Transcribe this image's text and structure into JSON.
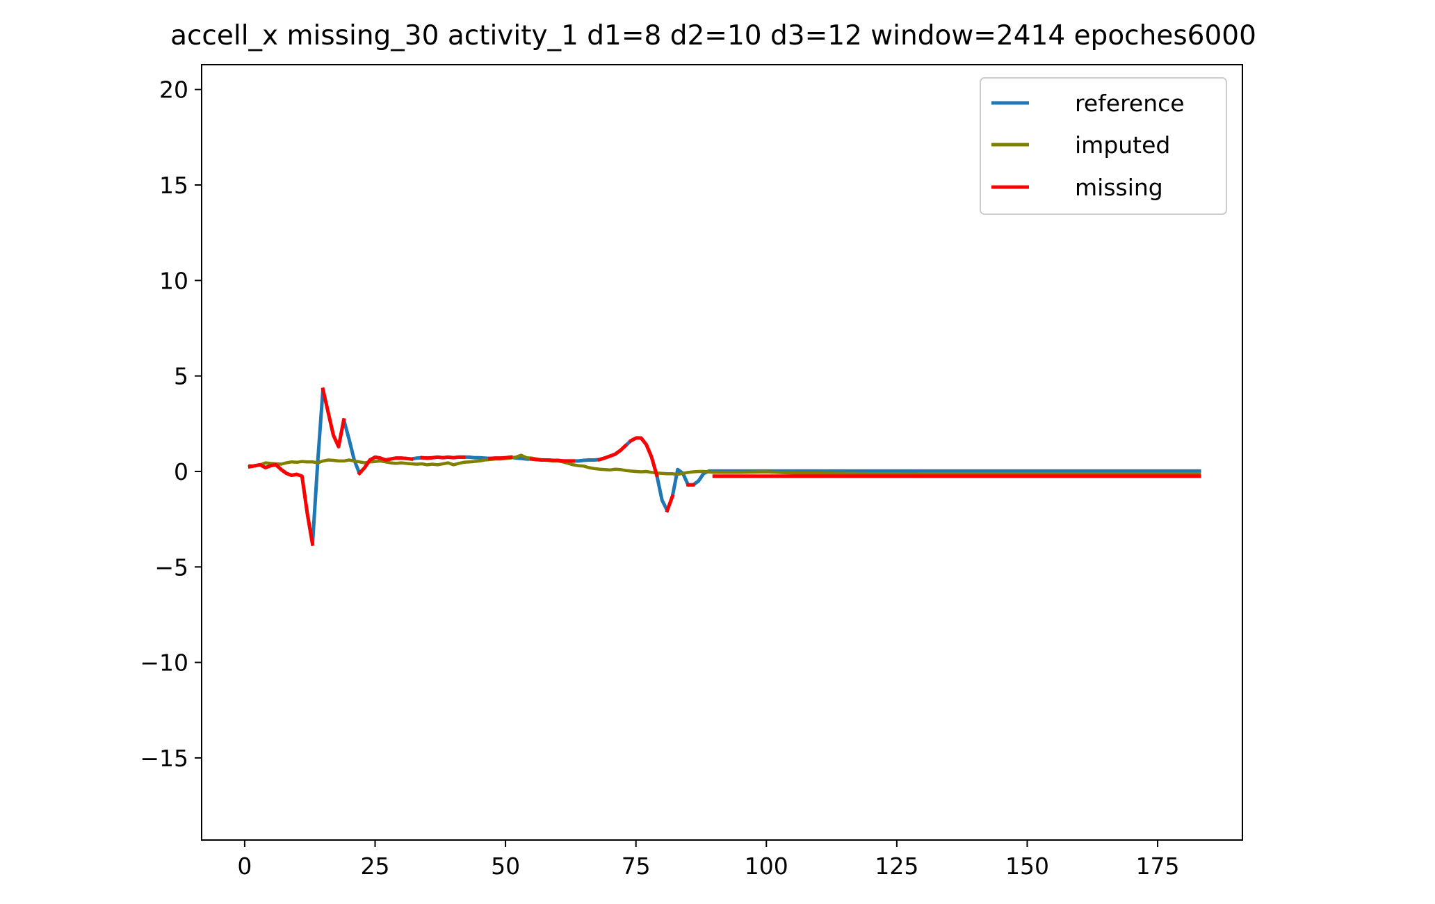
{
  "chart_data": {
    "type": "line",
    "title": "accell_x missing_30 activity_1 d1=8 d2=10 d3=12 window=2414 epoches6000",
    "xlabel": "",
    "ylabel": "",
    "xlim": [
      -8.25,
      191.25
    ],
    "ylim": [
      -19.3,
      21.3
    ],
    "xticks": [
      0,
      25,
      50,
      75,
      100,
      125,
      150,
      175
    ],
    "xtick_labels": [
      "0",
      "25",
      "50",
      "75",
      "100",
      "125",
      "150",
      "175"
    ],
    "yticks": [
      20,
      15,
      10,
      5,
      0,
      -5,
      -10,
      -15
    ],
    "ytick_labels": [
      "20",
      "15",
      "10",
      "5",
      "0",
      "−5",
      "−10",
      "−15"
    ],
    "grid": false,
    "legend_position": "top-right",
    "series": [
      {
        "name": "reference",
        "color": "#1f77b4",
        "points": [
          [
            1,
            0.25
          ],
          [
            2,
            0.3
          ],
          [
            3,
            0.35
          ],
          [
            4,
            0.2
          ],
          [
            5,
            0.3
          ],
          [
            6,
            0.35
          ],
          [
            7,
            0.1
          ],
          [
            8,
            -0.1
          ],
          [
            9,
            -0.2
          ],
          [
            10,
            -0.15
          ],
          [
            11,
            -0.25
          ],
          [
            12,
            -2.2
          ],
          [
            13,
            -3.8
          ],
          [
            14,
            0.5
          ],
          [
            15,
            4.3
          ],
          [
            16,
            3.1
          ],
          [
            17,
            1.9
          ],
          [
            18,
            1.3
          ],
          [
            19,
            2.7
          ],
          [
            20,
            1.7
          ],
          [
            21,
            0.6
          ],
          [
            22,
            -0.1
          ],
          [
            23,
            0.2
          ],
          [
            24,
            0.6
          ],
          [
            25,
            0.75
          ],
          [
            26,
            0.7
          ],
          [
            27,
            0.6
          ],
          [
            28,
            0.65
          ],
          [
            29,
            0.7
          ],
          [
            30,
            0.7
          ],
          [
            31,
            0.68
          ],
          [
            32,
            0.65
          ],
          [
            33,
            0.7
          ],
          [
            34,
            0.72
          ],
          [
            35,
            0.7
          ],
          [
            36,
            0.72
          ],
          [
            37,
            0.75
          ],
          [
            38,
            0.72
          ],
          [
            39,
            0.75
          ],
          [
            40,
            0.72
          ],
          [
            41,
            0.75
          ],
          [
            42,
            0.75
          ],
          [
            43,
            0.75
          ],
          [
            44,
            0.72
          ],
          [
            45,
            0.72
          ],
          [
            46,
            0.7
          ],
          [
            47,
            0.68
          ],
          [
            48,
            0.7
          ],
          [
            49,
            0.7
          ],
          [
            50,
            0.72
          ],
          [
            51,
            0.75
          ],
          [
            52,
            0.7
          ],
          [
            53,
            0.68
          ],
          [
            54,
            0.65
          ],
          [
            55,
            0.65
          ],
          [
            56,
            0.62
          ],
          [
            57,
            0.6
          ],
          [
            58,
            0.6
          ],
          [
            59,
            0.58
          ],
          [
            60,
            0.58
          ],
          [
            61,
            0.55
          ],
          [
            62,
            0.55
          ],
          [
            63,
            0.55
          ],
          [
            64,
            0.55
          ],
          [
            65,
            0.58
          ],
          [
            66,
            0.6
          ],
          [
            67,
            0.6
          ],
          [
            68,
            0.62
          ],
          [
            69,
            0.7
          ],
          [
            70,
            0.8
          ],
          [
            71,
            0.9
          ],
          [
            72,
            1.1
          ],
          [
            73,
            1.35
          ],
          [
            74,
            1.6
          ],
          [
            75,
            1.75
          ],
          [
            76,
            1.75
          ],
          [
            77,
            1.4
          ],
          [
            78,
            0.75
          ],
          [
            79,
            -0.2
          ],
          [
            80,
            -1.5
          ],
          [
            81,
            -2.05
          ],
          [
            82,
            -1.3
          ],
          [
            83,
            0.1
          ],
          [
            84,
            -0.1
          ],
          [
            85,
            -0.7
          ],
          [
            86,
            -0.7
          ],
          [
            87,
            -0.5
          ],
          [
            88,
            -0.1
          ],
          [
            89,
            0.02
          ],
          [
            90,
            0.02
          ],
          [
            183,
            0.02
          ]
        ]
      },
      {
        "name": "imputed",
        "color": "#808000",
        "points": [
          [
            1,
            0.3
          ],
          [
            2,
            0.28
          ],
          [
            3,
            0.35
          ],
          [
            4,
            0.45
          ],
          [
            5,
            0.42
          ],
          [
            6,
            0.4
          ],
          [
            7,
            0.38
          ],
          [
            8,
            0.45
          ],
          [
            9,
            0.5
          ],
          [
            10,
            0.48
          ],
          [
            11,
            0.52
          ],
          [
            12,
            0.5
          ],
          [
            13,
            0.5
          ],
          [
            14,
            0.45
          ],
          [
            15,
            0.55
          ],
          [
            16,
            0.6
          ],
          [
            17,
            0.58
          ],
          [
            18,
            0.55
          ],
          [
            19,
            0.55
          ],
          [
            20,
            0.6
          ],
          [
            21,
            0.55
          ],
          [
            22,
            0.5
          ],
          [
            23,
            0.45
          ],
          [
            24,
            0.5
          ],
          [
            25,
            0.52
          ],
          [
            26,
            0.55
          ],
          [
            27,
            0.5
          ],
          [
            28,
            0.45
          ],
          [
            29,
            0.42
          ],
          [
            30,
            0.45
          ],
          [
            31,
            0.42
          ],
          [
            32,
            0.4
          ],
          [
            33,
            0.38
          ],
          [
            34,
            0.4
          ],
          [
            35,
            0.35
          ],
          [
            36,
            0.38
          ],
          [
            37,
            0.35
          ],
          [
            38,
            0.4
          ],
          [
            39,
            0.45
          ],
          [
            40,
            0.35
          ],
          [
            41,
            0.42
          ],
          [
            42,
            0.48
          ],
          [
            43,
            0.5
          ],
          [
            44,
            0.52
          ],
          [
            45,
            0.55
          ],
          [
            46,
            0.6
          ],
          [
            47,
            0.62
          ],
          [
            48,
            0.65
          ],
          [
            49,
            0.65
          ],
          [
            50,
            0.68
          ],
          [
            51,
            0.7
          ],
          [
            52,
            0.75
          ],
          [
            53,
            0.85
          ],
          [
            54,
            0.72
          ],
          [
            55,
            0.7
          ],
          [
            56,
            0.65
          ],
          [
            57,
            0.6
          ],
          [
            58,
            0.58
          ],
          [
            59,
            0.55
          ],
          [
            60,
            0.55
          ],
          [
            61,
            0.5
          ],
          [
            62,
            0.42
          ],
          [
            63,
            0.35
          ],
          [
            64,
            0.3
          ],
          [
            65,
            0.28
          ],
          [
            66,
            0.2
          ],
          [
            67,
            0.15
          ],
          [
            68,
            0.12
          ],
          [
            69,
            0.1
          ],
          [
            70,
            0.08
          ],
          [
            71,
            0.12
          ],
          [
            72,
            0.1
          ],
          [
            73,
            0.05
          ],
          [
            74,
            0.02
          ],
          [
            75,
            0.0
          ],
          [
            76,
            -0.02
          ],
          [
            77,
            0.0
          ],
          [
            78,
            -0.05
          ],
          [
            79,
            -0.08
          ],
          [
            80,
            -0.1
          ],
          [
            81,
            -0.12
          ],
          [
            82,
            -0.12
          ],
          [
            83,
            -0.15
          ],
          [
            84,
            -0.1
          ],
          [
            85,
            -0.05
          ],
          [
            86,
            -0.02
          ],
          [
            87,
            0.0
          ],
          [
            88,
            0.0
          ],
          [
            90,
            -0.05
          ],
          [
            95,
            -0.05
          ],
          [
            100,
            -0.02
          ],
          [
            105,
            -0.08
          ],
          [
            110,
            -0.08
          ],
          [
            115,
            -0.1
          ],
          [
            120,
            -0.12
          ],
          [
            125,
            -0.12
          ],
          [
            130,
            -0.15
          ],
          [
            135,
            -0.15
          ],
          [
            140,
            -0.15
          ],
          [
            145,
            -0.15
          ],
          [
            150,
            -0.15
          ],
          [
            155,
            -0.15
          ],
          [
            160,
            -0.15
          ],
          [
            165,
            -0.15
          ],
          [
            170,
            -0.15
          ],
          [
            175,
            -0.15
          ],
          [
            180,
            -0.15
          ],
          [
            183,
            -0.15
          ]
        ]
      },
      {
        "name": "missing",
        "color": "#ff0000",
        "segments": [
          [
            [
              1,
              0.25
            ],
            [
              2,
              0.3
            ],
            [
              3,
              0.35
            ],
            [
              4,
              0.2
            ],
            [
              5,
              0.3
            ],
            [
              6,
              0.35
            ],
            [
              7,
              0.1
            ],
            [
              8,
              -0.1
            ],
            [
              9,
              -0.2
            ],
            [
              10,
              -0.15
            ],
            [
              11,
              -0.25
            ],
            [
              12,
              -2.2
            ],
            [
              13,
              -3.8
            ]
          ],
          [
            [
              15,
              4.3
            ],
            [
              16,
              3.1
            ],
            [
              17,
              1.9
            ],
            [
              18,
              1.3
            ],
            [
              19,
              2.7
            ]
          ],
          [
            [
              22,
              -0.1
            ],
            [
              23,
              0.2
            ],
            [
              24,
              0.6
            ],
            [
              25,
              0.75
            ],
            [
              26,
              0.7
            ],
            [
              27,
              0.6
            ],
            [
              28,
              0.65
            ],
            [
              29,
              0.7
            ],
            [
              30,
              0.7
            ],
            [
              31,
              0.68
            ],
            [
              32,
              0.65
            ]
          ],
          [
            [
              34,
              0.72
            ],
            [
              35,
              0.7
            ],
            [
              36,
              0.72
            ],
            [
              37,
              0.75
            ],
            [
              38,
              0.72
            ],
            [
              39,
              0.75
            ],
            [
              40,
              0.72
            ],
            [
              41,
              0.75
            ],
            [
              42,
              0.75
            ]
          ],
          [
            [
              47,
              0.68
            ],
            [
              48,
              0.7
            ],
            [
              49,
              0.7
            ],
            [
              50,
              0.72
            ],
            [
              51,
              0.75
            ]
          ],
          [
            [
              55,
              0.65
            ],
            [
              56,
              0.62
            ],
            [
              57,
              0.6
            ],
            [
              58,
              0.6
            ],
            [
              59,
              0.58
            ],
            [
              60,
              0.58
            ],
            [
              61,
              0.55
            ],
            [
              62,
              0.55
            ],
            [
              63,
              0.55
            ]
          ],
          [
            [
              68,
              0.62
            ],
            [
              69,
              0.7
            ],
            [
              70,
              0.8
            ],
            [
              71,
              0.9
            ],
            [
              72,
              1.1
            ],
            [
              73,
              1.35
            ]
          ],
          [
            [
              74,
              1.6
            ],
            [
              75,
              1.75
            ],
            [
              76,
              1.75
            ],
            [
              77,
              1.4
            ],
            [
              78,
              0.75
            ],
            [
              79,
              -0.2
            ]
          ],
          [
            [
              81,
              -2.05
            ],
            [
              82,
              -1.3
            ]
          ],
          [
            [
              85,
              -0.7
            ],
            [
              86,
              -0.7
            ]
          ],
          [
            [
              90,
              -0.25
            ],
            [
              183,
              -0.25
            ]
          ]
        ]
      }
    ]
  }
}
